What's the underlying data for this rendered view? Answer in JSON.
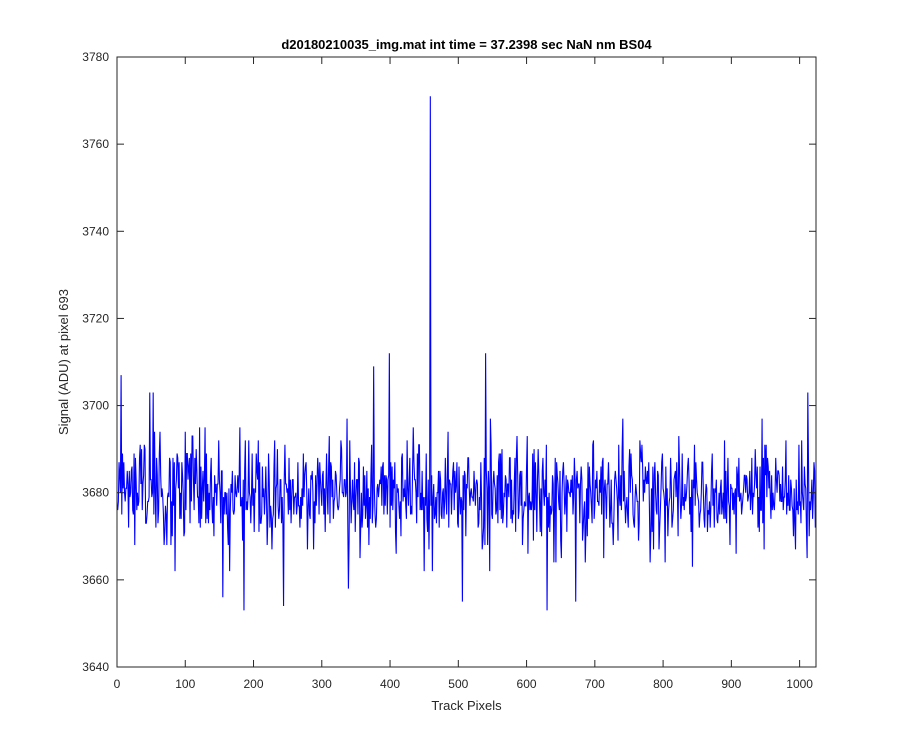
{
  "chart_data": {
    "type": "line",
    "title": "d20180210035_img.mat int time = 37.2398 sec  NaN nm BS04",
    "xlabel": "Track Pixels",
    "ylabel": "Signal (ADU) at pixel 693",
    "xlim": [
      0,
      1024
    ],
    "ylim": [
      3640,
      3780
    ],
    "xticks": [
      0,
      100,
      200,
      300,
      400,
      500,
      600,
      700,
      800,
      900,
      1000
    ],
    "yticks": [
      3640,
      3660,
      3680,
      3700,
      3720,
      3740,
      3760,
      3780
    ],
    "grid": false,
    "box": true,
    "series": [
      {
        "color": "#0000ff",
        "x_start": 1,
        "x_step": 1,
        "n_points": 1024,
        "baseline_mean": 3680,
        "noise_std": 6,
        "notable_points": [
          {
            "x": 6,
            "y": 3707
          },
          {
            "x": 48,
            "y": 3703
          },
          {
            "x": 53,
            "y": 3703
          },
          {
            "x": 155,
            "y": 3656
          },
          {
            "x": 186,
            "y": 3653
          },
          {
            "x": 244,
            "y": 3654
          },
          {
            "x": 339,
            "y": 3658
          },
          {
            "x": 376,
            "y": 3709
          },
          {
            "x": 399,
            "y": 3712
          },
          {
            "x": 459,
            "y": 3771
          },
          {
            "x": 506,
            "y": 3655
          },
          {
            "x": 540,
            "y": 3712
          },
          {
            "x": 630,
            "y": 3653
          },
          {
            "x": 672,
            "y": 3655
          },
          {
            "x": 1012,
            "y": 3703
          }
        ]
      }
    ]
  }
}
